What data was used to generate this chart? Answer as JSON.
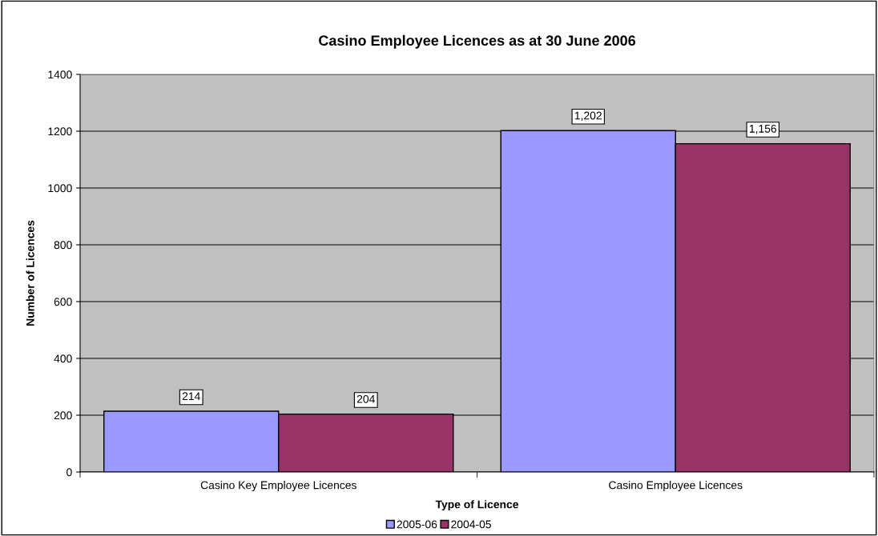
{
  "chart_data": {
    "type": "bar",
    "title": "Casino Employee Licences as at 30 June 2006",
    "xlabel": "Type of Licence",
    "ylabel": "Number of Licences",
    "categories": [
      "Casino Key Employee Licences",
      "Casino Employee Licences"
    ],
    "series": [
      {
        "name": "2005-06",
        "color": "#9999ff",
        "values": [
          214,
          1202
        ],
        "value_labels": [
          "214",
          "1,202"
        ]
      },
      {
        "name": "2004-05",
        "color": "#993366",
        "values": [
          204,
          1156
        ],
        "value_labels": [
          "204",
          "1,156"
        ]
      }
    ],
    "ylim": [
      0,
      1400
    ],
    "yticks": [
      0,
      200,
      400,
      600,
      800,
      1000,
      1200,
      1400
    ],
    "grid": "y",
    "legend": "bottom"
  }
}
